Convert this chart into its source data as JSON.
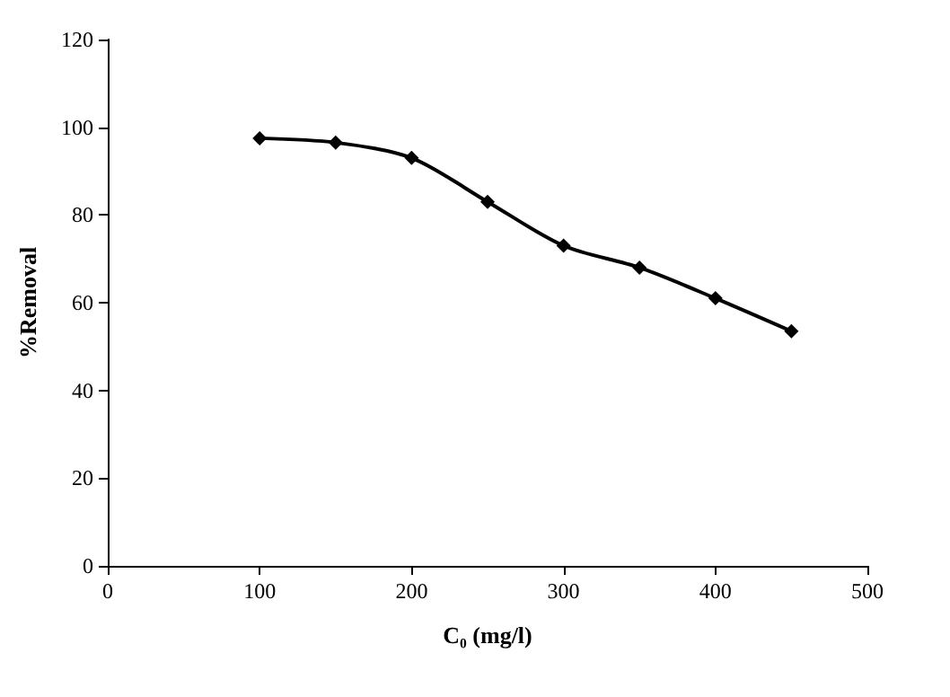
{
  "chart_data": {
    "type": "line",
    "xlabel": "C₀ (mg/l)",
    "ylabel": "%Removal",
    "x": [
      100,
      150,
      200,
      250,
      300,
      350,
      400,
      450
    ],
    "series": [
      {
        "color": "#000000",
        "values": [
          97.5,
          96.5,
          93,
          83,
          73,
          68,
          61,
          53.5
        ]
      }
    ],
    "xlim": [
      0,
      500
    ],
    "xticks": [
      0,
      100,
      200,
      300,
      400,
      500
    ],
    "ylim": [
      0,
      120
    ],
    "yticks": [
      0,
      20,
      40,
      60,
      80,
      100,
      120
    ],
    "grid": false,
    "marker": "diamond",
    "line_style": "solid"
  }
}
